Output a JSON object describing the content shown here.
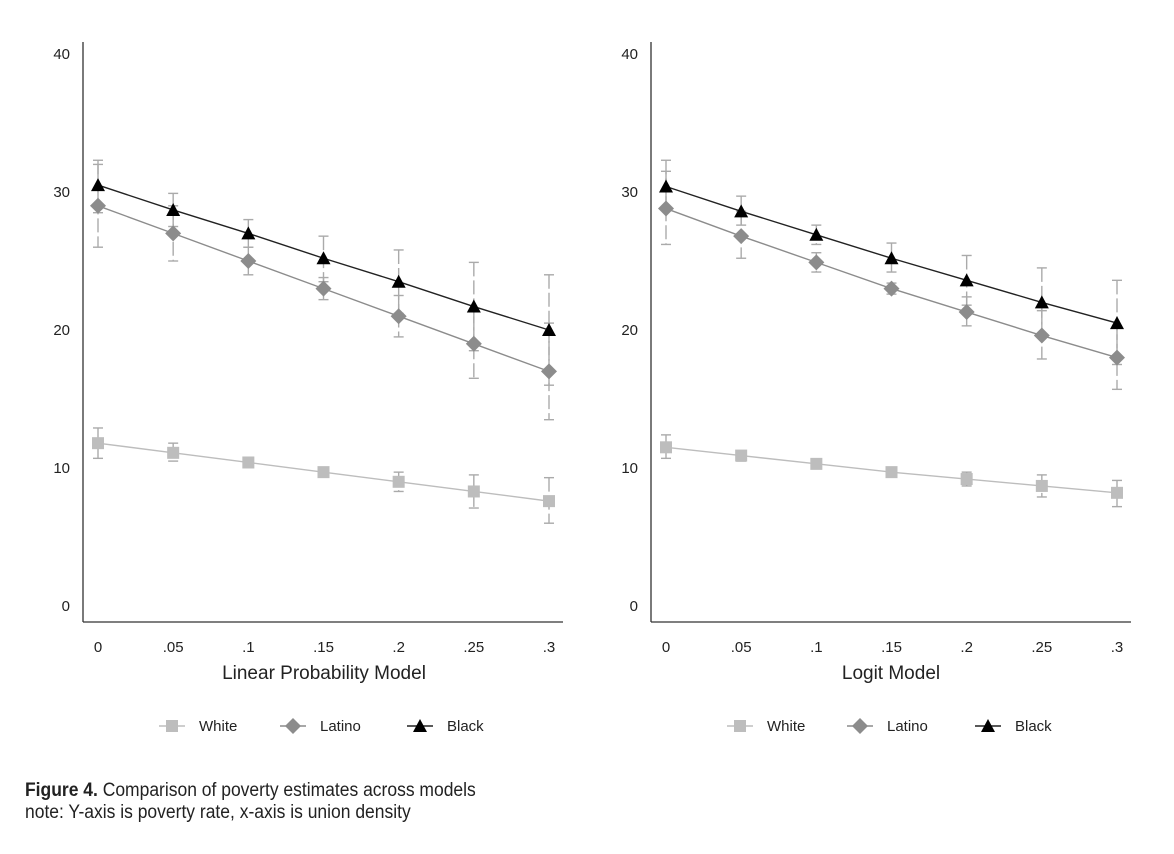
{
  "chart_data": [
    {
      "type": "line",
      "xlabel": "Linear Probability Model",
      "ylabel": "",
      "x": [
        0,
        0.05,
        0.1,
        0.15,
        0.2,
        0.25,
        0.3
      ],
      "x_tick_labels": [
        "0",
        ".05",
        ".1",
        ".15",
        ".2",
        ".25",
        ".3"
      ],
      "y_ticks": [
        0,
        10,
        20,
        30,
        40
      ],
      "ylim": [
        0,
        40
      ],
      "grid": false,
      "legend_position": "bottom",
      "series": [
        {
          "name": "White",
          "marker": "square",
          "color": "#bdbdbd",
          "values": [
            11.8,
            11.1,
            10.4,
            9.7,
            9.0,
            8.3,
            7.6
          ],
          "ci_low": [
            10.7,
            10.5,
            10.2,
            9.5,
            8.3,
            7.1,
            6.0
          ],
          "ci_high": [
            12.9,
            11.8,
            10.6,
            9.9,
            9.7,
            9.5,
            9.3
          ]
        },
        {
          "name": "Latino",
          "marker": "diamond",
          "color": "#8c8c8c",
          "values": [
            29.0,
            27.0,
            25.0,
            23.0,
            21.0,
            19.0,
            17.0
          ],
          "ci_low": [
            26.0,
            25.0,
            24.0,
            22.2,
            19.5,
            16.5,
            13.5
          ],
          "ci_high": [
            32.0,
            29.0,
            26.0,
            23.8,
            22.5,
            21.5,
            20.5
          ]
        },
        {
          "name": "Black",
          "marker": "triangle",
          "color": "#000000",
          "values": [
            30.5,
            28.7,
            27.0,
            25.2,
            23.5,
            21.7,
            20.0
          ],
          "ci_low": [
            28.5,
            27.5,
            26.0,
            23.5,
            21.2,
            18.5,
            16.0
          ],
          "ci_high": [
            32.3,
            29.9,
            28.0,
            26.8,
            25.8,
            24.9,
            24.0
          ]
        }
      ]
    },
    {
      "type": "line",
      "xlabel": "Logit Model",
      "ylabel": "",
      "x": [
        0,
        0.05,
        0.1,
        0.15,
        0.2,
        0.25,
        0.3
      ],
      "x_tick_labels": [
        "0",
        ".05",
        ".1",
        ".15",
        ".2",
        ".25",
        ".3"
      ],
      "y_ticks": [
        0,
        10,
        20,
        30,
        40
      ],
      "ylim": [
        0,
        40
      ],
      "grid": false,
      "legend_position": "bottom",
      "series": [
        {
          "name": "White",
          "marker": "square",
          "color": "#bdbdbd",
          "values": [
            11.5,
            10.9,
            10.3,
            9.7,
            9.2,
            8.7,
            8.2
          ],
          "ci_low": [
            10.7,
            10.5,
            10.1,
            9.5,
            8.7,
            7.9,
            7.2
          ],
          "ci_high": [
            12.4,
            11.2,
            10.5,
            9.9,
            9.7,
            9.5,
            9.1
          ]
        },
        {
          "name": "Latino",
          "marker": "diamond",
          "color": "#8c8c8c",
          "values": [
            28.8,
            26.8,
            24.9,
            23.0,
            21.3,
            19.6,
            18.0
          ],
          "ci_low": [
            26.2,
            25.2,
            24.2,
            22.6,
            20.3,
            17.9,
            15.7
          ],
          "ci_high": [
            31.5,
            28.6,
            25.6,
            23.4,
            22.4,
            21.4,
            20.3
          ]
        },
        {
          "name": "Black",
          "marker": "triangle",
          "color": "#000000",
          "values": [
            30.4,
            28.6,
            26.9,
            25.2,
            23.6,
            22.0,
            20.5
          ],
          "ci_low": [
            28.7,
            27.6,
            26.2,
            24.2,
            21.8,
            19.6,
            17.5
          ],
          "ci_high": [
            32.3,
            29.7,
            27.6,
            26.3,
            25.4,
            24.5,
            23.6
          ]
        }
      ]
    }
  ],
  "caption": {
    "figure_label": "Figure 4.",
    "title": "Comparison of poverty estimates across models",
    "note": "note: Y-axis is poverty rate, x-axis is union density"
  }
}
